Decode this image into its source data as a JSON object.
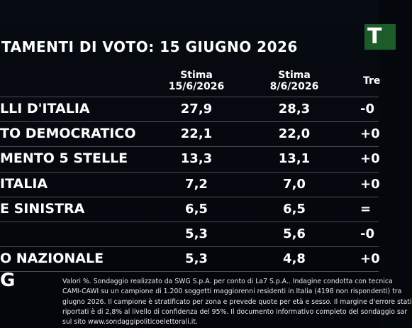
{
  "header": {
    "title": "TAMENTI DI VOTO: 15 GIUGNO 2026",
    "logo": "T"
  },
  "table": {
    "columns": [
      [
        "Stima",
        "15/6/2026"
      ],
      [
        "Stima",
        "8/6/2026"
      ],
      [
        "Tre"
      ]
    ],
    "rows": [
      [
        "LLI D'ITALIA",
        "27,9",
        "28,3",
        "-0"
      ],
      [
        "TO DEMOCRATICO",
        "22,1",
        "22,0",
        "+0"
      ],
      [
        "MENTO 5 STELLE",
        "13,3",
        "13,1",
        "+0"
      ],
      [
        "ITALIA",
        "7,2",
        "7,0",
        "+0"
      ],
      [
        "E SINISTRA",
        "6,5",
        "6,5",
        "="
      ],
      [
        null,
        "5,3",
        "5,6",
        "-0"
      ],
      [
        "O NAZIONALE",
        "5,3",
        "4,8",
        "+0"
      ]
    ]
  },
  "footer": {
    "logo": "G",
    "lines": [
      "Valori %. Sondaggio realizzato da SWG S.p.A. per conto di La7 S.p.A.. Indagine condotta con tecnica",
      "CAMI-CAWI su un campione di 1.200 soggetti maggiorenni residenti in Italia (4198 non rispondenti) tra",
      "giugno 2026. Il campione è stratificato per zona e prevede quote per età e sesso. Il margine d'errore stati",
      "riportati è di 2,8% al livello di confidenza del 95%. Il documento informativo completo del sondaggio sar",
      "sul sito www.sondaggipoliticoelettorali.it."
    ]
  }
}
